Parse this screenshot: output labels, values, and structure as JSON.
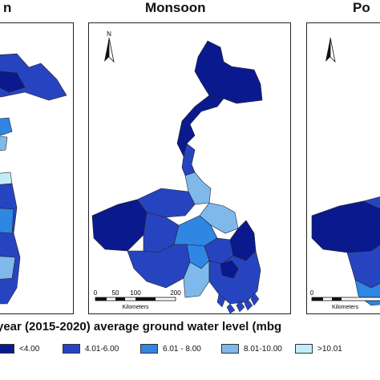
{
  "panels": {
    "left_title": "n",
    "center_title": "Monsoon",
    "right_title": "Po"
  },
  "north_label": "N",
  "scale": {
    "ticks": [
      "0",
      "50",
      "100",
      "200"
    ],
    "unit": "Kilometers"
  },
  "main_title": "year (2015-2020) average ground water level (mbg",
  "legend": [
    {
      "label": "<4.00",
      "color": "#0a1a8e"
    },
    {
      "label": "4.01-6.00",
      "color": "#2744c0"
    },
    {
      "label": "6.01 - 8.00",
      "color": "#2f86e3"
    },
    {
      "label": "8.01-10.00",
      "color": "#7fb9ec"
    },
    {
      "label": ">10.01",
      "color": "#c2ecfa"
    }
  ],
  "colors": {
    "c1": "#0a1a8e",
    "c2": "#2744c0",
    "c3": "#2f86e3",
    "c4": "#7fb9ec",
    "c5": "#c2ecfa"
  }
}
